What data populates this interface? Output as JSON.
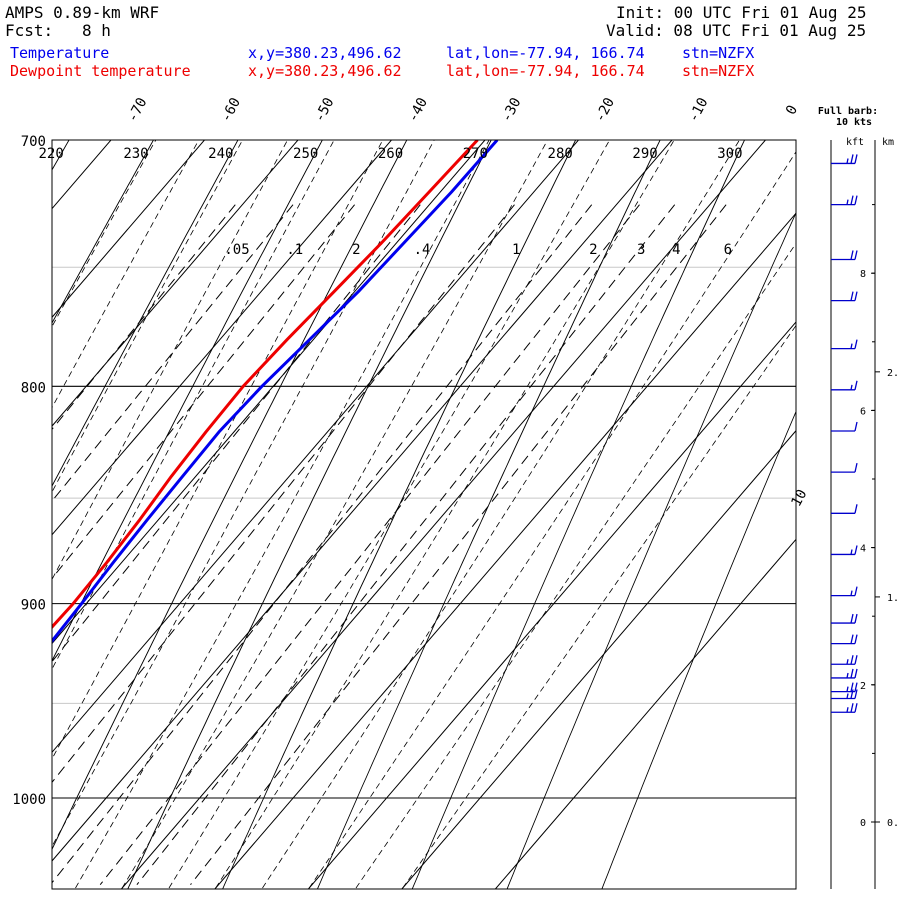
{
  "header": {
    "model": "AMPS 0.89-km WRF",
    "fcst_label": "Fcst:",
    "fcst_value": "8 h",
    "init": "Init: 00 UTC Fri 01 Aug 25",
    "valid": "Valid: 08 UTC Fri 01 Aug 25"
  },
  "legend": [
    {
      "name": "Temperature",
      "xy": "x,y=380.23,496.62",
      "latlon": "lat,lon=-77.94, 166.74",
      "stn": "stn=NZFX",
      "color": "#0000ee"
    },
    {
      "name": "Dewpoint temperature",
      "xy": "x,y=380.23,496.62",
      "latlon": "lat,lon=-77.94, 166.74",
      "stn": "stn=NZFX",
      "color": "#ee0000"
    }
  ],
  "wind_panel": {
    "title_line1": "Full barb:",
    "title_line2": "10 kts",
    "kft_label": "kft",
    "km_label": "km",
    "kft_ticks": [
      "8",
      "6",
      "4",
      "2",
      "0"
    ],
    "km_ticks": [
      "2.",
      "1.",
      "0."
    ]
  },
  "chart_data": {
    "type": "line",
    "chart_kind": "skew-T log-P diagram",
    "pressure_axis": {
      "label_values": [
        "700",
        "800",
        "900",
        "1000"
      ],
      "range_hpa": [
        1045,
        700
      ],
      "scale": "log"
    },
    "temperature_ticks": [
      "-70",
      "-60",
      "-50",
      "-40",
      "-30",
      "-20",
      "-10",
      "0",
      "10"
    ],
    "dry_adiabat_labels": [
      "220",
      "230",
      "240",
      "250",
      "260",
      "270",
      "280",
      "290",
      "300"
    ],
    "mixing_ratio_labels": [
      ".05",
      ".1",
      "2",
      ".4",
      "1",
      "2",
      "3",
      "4",
      "6"
    ],
    "series": [
      {
        "name": "Temperature",
        "color": "#0000ee",
        "points": [
          {
            "p": 700,
            "t": -28.7
          },
          {
            "p": 720,
            "t": -28.8
          },
          {
            "p": 740,
            "t": -29.2
          },
          {
            "p": 760,
            "t": -29.6
          },
          {
            "p": 780,
            "t": -30.4
          },
          {
            "p": 800,
            "t": -31.2
          },
          {
            "p": 820,
            "t": -31.6
          },
          {
            "p": 840,
            "t": -31.4
          },
          {
            "p": 860,
            "t": -31.2
          },
          {
            "p": 880,
            "t": -30.9
          },
          {
            "p": 900,
            "t": -30.5
          },
          {
            "p": 920,
            "t": -30.2
          },
          {
            "p": 935,
            "t": -30.1
          },
          {
            "p": 945,
            "t": -30.2
          },
          {
            "p": 955,
            "t": -29.7
          },
          {
            "p": 963,
            "t": -28.9
          }
        ]
      },
      {
        "name": "Dewpoint temperature",
        "color": "#ee0000",
        "points": [
          {
            "p": 700,
            "t": -30.8
          },
          {
            "p": 720,
            "t": -31.2
          },
          {
            "p": 740,
            "t": -31.6
          },
          {
            "p": 760,
            "t": -32.2
          },
          {
            "p": 780,
            "t": -32.8
          },
          {
            "p": 800,
            "t": -33.2
          },
          {
            "p": 820,
            "t": -33.0
          },
          {
            "p": 840,
            "t": -32.6
          },
          {
            "p": 860,
            "t": -32.0
          },
          {
            "p": 880,
            "t": -31.6
          },
          {
            "p": 900,
            "t": -31.4
          },
          {
            "p": 920,
            "t": -31.6
          },
          {
            "p": 935,
            "t": -32.4
          },
          {
            "p": 945,
            "t": -33.2
          },
          {
            "p": 955,
            "t": -33.0
          },
          {
            "p": 963,
            "t": -32.4
          }
        ]
      }
    ],
    "wind_barbs": [
      {
        "kft": 9.6,
        "kts": 25
      },
      {
        "kft": 9.0,
        "kts": 25
      },
      {
        "kft": 8.2,
        "kts": 20
      },
      {
        "kft": 7.6,
        "kts": 20
      },
      {
        "kft": 6.9,
        "kts": 15
      },
      {
        "kft": 6.3,
        "kts": 15
      },
      {
        "kft": 5.7,
        "kts": 10
      },
      {
        "kft": 5.1,
        "kts": 10
      },
      {
        "kft": 4.5,
        "kts": 10
      },
      {
        "kft": 3.9,
        "kts": 15
      },
      {
        "kft": 3.3,
        "kts": 15
      },
      {
        "kft": 2.9,
        "kts": 20
      },
      {
        "kft": 2.6,
        "kts": 20
      },
      {
        "kft": 2.3,
        "kts": 25
      },
      {
        "kft": 2.1,
        "kts": 25
      },
      {
        "kft": 1.9,
        "kts": 25
      },
      {
        "kft": 1.8,
        "kts": 25
      },
      {
        "kft": 1.6,
        "kts": 25
      }
    ]
  }
}
